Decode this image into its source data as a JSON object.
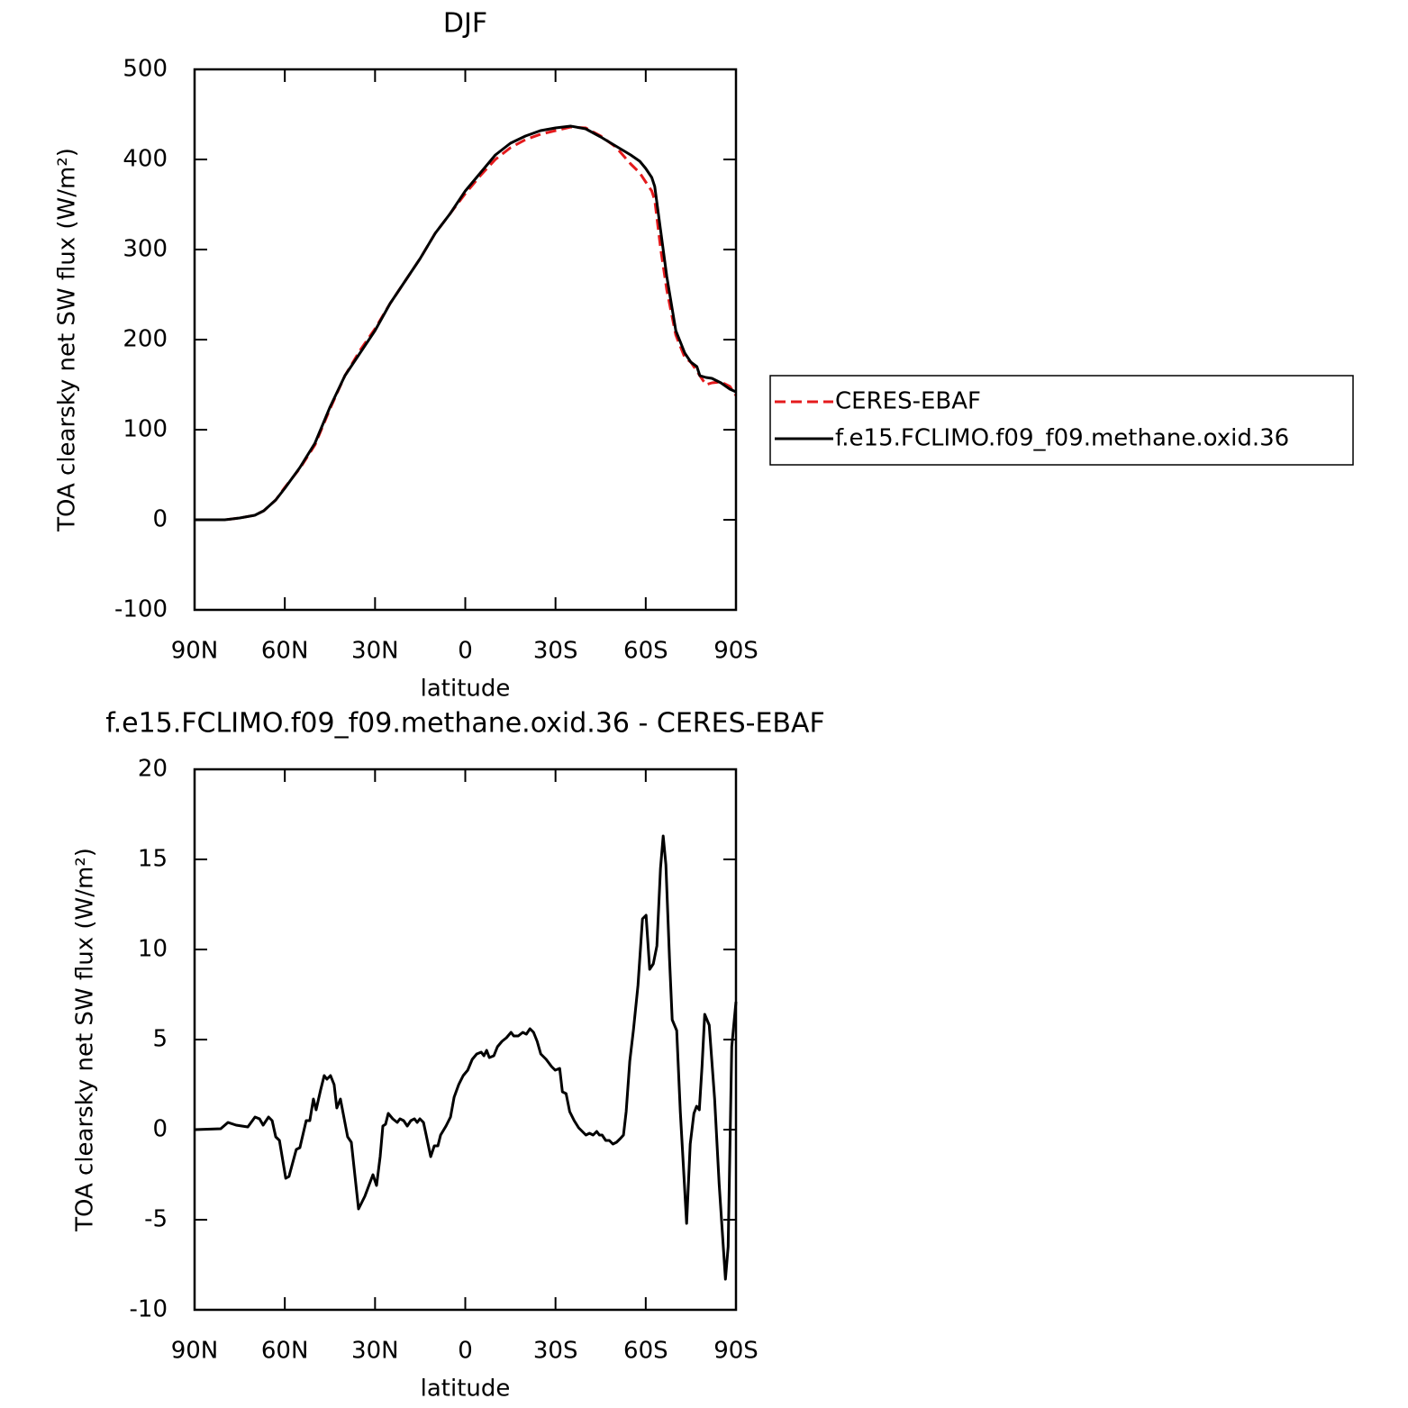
{
  "chart_data": [
    {
      "type": "line",
      "title": "DJF",
      "xlabel": "latitude",
      "ylabel": "TOA clearsky net SW flux (W/m²)",
      "x": [
        90,
        85,
        80,
        75,
        70,
        67,
        63,
        60,
        55,
        50,
        45,
        40,
        35,
        30,
        25,
        20,
        15,
        10,
        5,
        0,
        -5,
        -10,
        -15,
        -20,
        -25,
        -30,
        -35,
        -40,
        -45,
        -50,
        -55,
        -58,
        -60,
        -62,
        -63,
        -65,
        -67,
        -70,
        -73,
        -75,
        -77,
        -78,
        -80,
        -82,
        -85,
        -88,
        -90
      ],
      "series": [
        {
          "name": "CERES-EBAF",
          "color": "#e41a1c",
          "style": "dashed",
          "values": [
            0,
            0,
            0,
            2,
            5,
            10,
            22,
            36,
            57,
            83,
            123,
            160,
            188,
            212,
            240,
            265,
            290,
            318,
            340,
            362,
            382,
            400,
            413,
            422,
            428,
            432,
            436,
            435,
            426,
            414,
            395,
            385,
            375,
            365,
            355,
            300,
            255,
            205,
            180,
            175,
            165,
            160,
            150,
            152,
            153,
            148,
            138
          ]
        },
        {
          "name": "f.e15.FCLIMO.f09_f09.methane.oxid.36",
          "color": "#000000",
          "style": "solid",
          "values": [
            0,
            0,
            0,
            2,
            5,
            10,
            22,
            35,
            58,
            85,
            125,
            160,
            185,
            210,
            240,
            265,
            290,
            318,
            340,
            365,
            385,
            405,
            418,
            426,
            432,
            435,
            437,
            434,
            425,
            415,
            405,
            398,
            390,
            380,
            370,
            320,
            270,
            210,
            185,
            175,
            170,
            160,
            158,
            157,
            152,
            145,
            142
          ]
        }
      ],
      "xlim": [
        90,
        -90
      ],
      "xticks": [
        {
          "value": 90,
          "label": "90N"
        },
        {
          "value": 60,
          "label": "60N"
        },
        {
          "value": 30,
          "label": "30N"
        },
        0,
        {
          "value": -30,
          "label": "30S"
        },
        {
          "value": -60,
          "label": "60S"
        },
        {
          "value": -90,
          "label": "90S"
        }
      ],
      "ylim": [
        -100,
        500
      ],
      "yticks": [
        -100,
        0,
        100,
        200,
        300,
        400,
        500
      ],
      "legend": "right"
    },
    {
      "type": "line",
      "title": "f.e15.FCLIMO.f09_f09.methane.oxid.36 - CERES-EBAF",
      "xlabel": "latitude",
      "ylabel": "TOA clearsky net SW flux (W/m²)",
      "x": [
        90,
        81.3,
        78.9,
        76.2,
        72.3,
        69.9,
        68.4,
        67.2,
        65.4,
        64.2,
        63.0,
        61.8,
        59.7,
        58.6,
        56.2,
        55.0,
        52.9,
        51.7,
        50.5,
        49.6,
        48.1,
        46.9,
        46.0,
        44.8,
        43.6,
        42.7,
        41.5,
        39.1,
        37.9,
        35.5,
        33.4,
        30.7,
        29.5,
        28.3,
        27.4,
        26.5,
        25.6,
        24.1,
        22.6,
        21.7,
        20.5,
        19.3,
        18.1,
        16.9,
        16.0,
        15.1,
        13.9,
        13.0,
        11.5,
        10.3,
        9.1,
        8.2,
        6.4,
        4.9,
        3.7,
        2.2,
        0.7,
        -0.8,
        -2.3,
        -3.8,
        -5.3,
        -6.2,
        -7.1,
        -8.0,
        -9.5,
        -10.7,
        -12.2,
        -13.7,
        -15.2,
        -16.1,
        -17.6,
        -19.1,
        -20.3,
        -21.5,
        -22.7,
        -23.9,
        -25.1,
        -26.9,
        -28.7,
        -29.9,
        -31.4,
        -32.3,
        -33.5,
        -34.7,
        -36.2,
        -37.7,
        -38.9,
        -40.1,
        -41.3,
        -42.5,
        -43.7,
        -44.6,
        -45.5,
        -46.7,
        -47.9,
        -49.1,
        -50.3,
        -51.5,
        -52.6,
        -53.5,
        -54.7,
        -55.9,
        -57.4,
        -58.9,
        -60.1,
        -61.3,
        -62.5,
        -63.7,
        -64.9,
        -65.8,
        -66.7,
        -67.9,
        -68.8,
        -70.3,
        -71.5,
        -73.6,
        -74.8,
        -76.0,
        -76.9,
        -77.8,
        -78.7,
        -79.6,
        -81.1,
        -82.9,
        -84.4,
        -86.5,
        -87.4,
        -88.6,
        -90
      ],
      "series": [
        {
          "name": null,
          "color": "#000000",
          "style": "solid",
          "values": [
            0,
            0.05,
            0.4,
            0.25,
            0.15,
            0.7,
            0.6,
            0.25,
            0.7,
            0.5,
            -0.4,
            -0.6,
            -2.7,
            -2.6,
            -1.1,
            -1,
            0.5,
            0.5,
            1.7,
            1.1,
            2.2,
            3,
            2.8,
            3,
            2.5,
            1.2,
            1.7,
            -0.4,
            -0.7,
            -4.4,
            -3.7,
            -2.5,
            -3.1,
            -1.5,
            0.2,
            0.3,
            0.9,
            0.6,
            0.4,
            0.6,
            0.5,
            0.2,
            0.5,
            0.6,
            0.4,
            0.6,
            0.4,
            -0.3,
            -1.5,
            -0.9,
            -0.9,
            -0.3,
            0.2,
            0.7,
            1.8,
            2.5,
            3,
            3.3,
            3.9,
            4.2,
            4.3,
            4.1,
            4.4,
            4,
            4.1,
            4.6,
            4.9,
            5.1,
            5.4,
            5.2,
            5.2,
            5.4,
            5.3,
            5.6,
            5.4,
            4.9,
            4.2,
            3.9,
            3.5,
            3.3,
            3.4,
            2.1,
            2.0,
            1.0,
            0.5,
            0.1,
            -0.1,
            -0.3,
            -0.2,
            -0.3,
            -0.1,
            -0.3,
            -0.3,
            -0.6,
            -0.6,
            -0.8,
            -0.7,
            -0.5,
            -0.3,
            1,
            3.8,
            5.5,
            8,
            11.7,
            11.9,
            8.9,
            9.2,
            10.2,
            14.5,
            16.3,
            14.7,
            9.5,
            6.1,
            5.5,
            1,
            -5.2,
            -0.8,
            0.9,
            1.3,
            1.1,
            3.5,
            6.4,
            5.8,
            1.7,
            -3,
            -8.3,
            -6.5,
            4.6,
            7.1
          ]
        }
      ],
      "xlim": [
        90,
        -90
      ],
      "xticks": [
        {
          "value": 90,
          "label": "90N"
        },
        {
          "value": 60,
          "label": "60N"
        },
        {
          "value": 30,
          "label": "30N"
        },
        0,
        {
          "value": -30,
          "label": "30S"
        },
        {
          "value": -60,
          "label": "60S"
        },
        {
          "value": -90,
          "label": "90S"
        }
      ],
      "ylim": [
        -10,
        20
      ],
      "yticks": [
        -10,
        -5,
        0,
        5,
        10,
        15,
        20
      ]
    }
  ]
}
